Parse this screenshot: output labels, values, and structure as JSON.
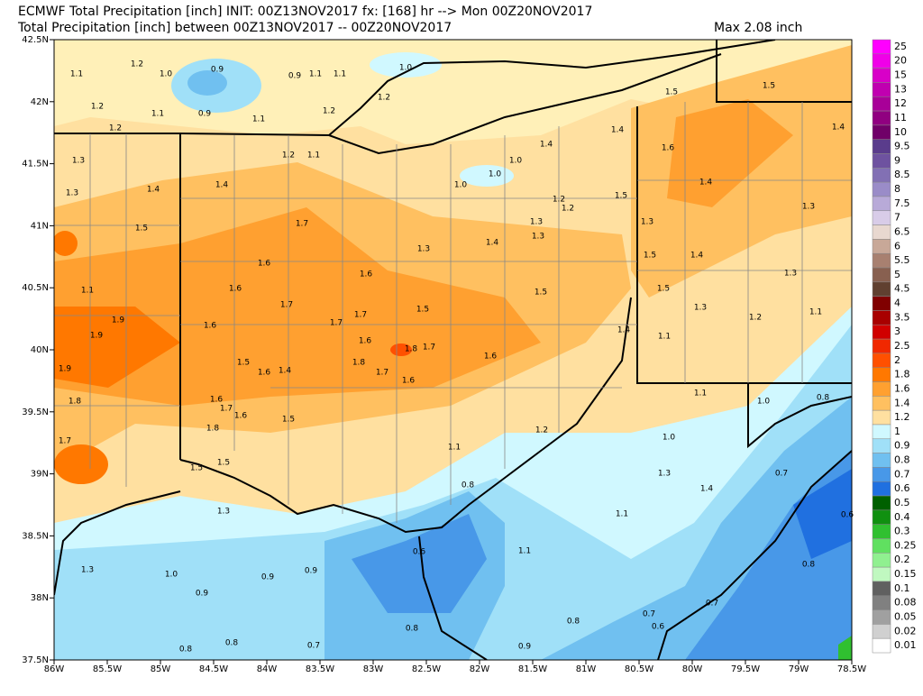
{
  "header": {
    "line1": "ECMWF Total Precipitation [inch] INIT: 00Z13NOV2017 fx: [168] hr --> Mon 00Z20NOV2017",
    "line2": "Total Precipitation [inch] between 00Z13NOV2017 -- 00Z20NOV2017",
    "max": "Max 2.08 inch"
  },
  "map": {
    "lat_labels": [
      "42.5N",
      "42N",
      "41.5N",
      "41N",
      "40.5N",
      "40N",
      "39.5N",
      "39N",
      "38.5N",
      "38N",
      "37.5N"
    ],
    "lon_labels": [
      "86W",
      "85.5W",
      "85W",
      "84.5W",
      "84W",
      "83.5W",
      "83W",
      "82.5W",
      "82W",
      "81.5W",
      "81W",
      "80.5W",
      "80W",
      "79.5W",
      "79W",
      "78.5W"
    ],
    "labels": [
      "1.1",
      "1.2",
      "1.0",
      "0.9",
      "0.9",
      "1.1",
      "1.1",
      "1.0",
      "1.2",
      "1.1",
      "0.9",
      "1.1",
      "1.2",
      "1.2",
      "1.2",
      "1.5",
      "1.5",
      "1.4",
      "1.4",
      "1.6",
      "1.3",
      "1.2",
      "1.1",
      "1.4",
      "1.0",
      "1.0",
      "1.0",
      "1.3",
      "1.4",
      "1.4",
      "1.4",
      "1.5",
      "1.2",
      "1.2",
      "1.3",
      "1.7",
      "1.5",
      "1.3",
      "1.3",
      "1.3",
      "1.4",
      "1.3",
      "1.5",
      "1.4",
      "1.6",
      "1.6",
      "1.3",
      "1.6",
      "1.1",
      "1.5",
      "1.5",
      "1.7",
      "1.7",
      "1.5",
      "1.3",
      "1.1",
      "1.2",
      "1.9",
      "1.6",
      "1.7",
      "1.9",
      "1.4",
      "1.1",
      "1.6",
      "1.8",
      "1.7",
      "1.6",
      "1.5",
      "1.9",
      "1.6",
      "1.4",
      "1.8",
      "1.7",
      "1.6",
      "1.1",
      "1.0",
      "0.8",
      "1.6",
      "1.8",
      "1.7",
      "1.6",
      "1.5",
      "1.8",
      "1.2",
      "1.0",
      "1.7",
      "1.1",
      "1.5",
      "1.5",
      "0.7",
      "1.3",
      "0.8",
      "1.4",
      "1.3",
      "1.1",
      "0.6",
      "1.1",
      "0.6",
      "1.3",
      "1.0",
      "0.9",
      "0.9",
      "0.8",
      "0.9",
      "0.7",
      "0.7",
      "0.8",
      "0.6",
      "0.8",
      "0.8",
      "0.8",
      "0.7",
      "0.9"
    ]
  },
  "colorbar": {
    "labels": [
      "25",
      "20",
      "15",
      "13",
      "12",
      "11",
      "10",
      "9.5",
      "9",
      "8.5",
      "8",
      "7.5",
      "7",
      "6.5",
      "6",
      "5.5",
      "5",
      "4.5",
      "4",
      "3.5",
      "3",
      "2.5",
      "2",
      "1.8",
      "1.6",
      "1.4",
      "1.2",
      "1",
      "0.9",
      "0.8",
      "0.7",
      "0.6",
      "0.5",
      "0.4",
      "0.3",
      "0.25",
      "0.2",
      "0.15",
      "0.1",
      "0.08",
      "0.05",
      "0.02",
      "0.01"
    ],
    "colors": [
      "#ff00ff",
      "#f000e8",
      "#d800c8",
      "#c000b0",
      "#a80098",
      "#900080",
      "#700068",
      "#5a3c8c",
      "#6e52a0",
      "#8270b4",
      "#9a8cc8",
      "#b8aad8",
      "#d8cce8",
      "#e8d8d0",
      "#c8a898",
      "#a88070",
      "#886050",
      "#604030",
      "#800000",
      "#a80000",
      "#d00000",
      "#f02800",
      "#ff5000",
      "#ff7800",
      "#ffa030",
      "#ffc060",
      "#ffe0a0",
      "#d0f8ff",
      "#a0e0f8",
      "#70c0f0",
      "#4898e8",
      "#2070e0",
      "#006000",
      "#109010",
      "#30c030",
      "#60e060",
      "#90f090",
      "#c0f8c0",
      "#606060",
      "#808080",
      "#a0a0a0",
      "#d0d0d0",
      "#ffffff"
    ]
  }
}
